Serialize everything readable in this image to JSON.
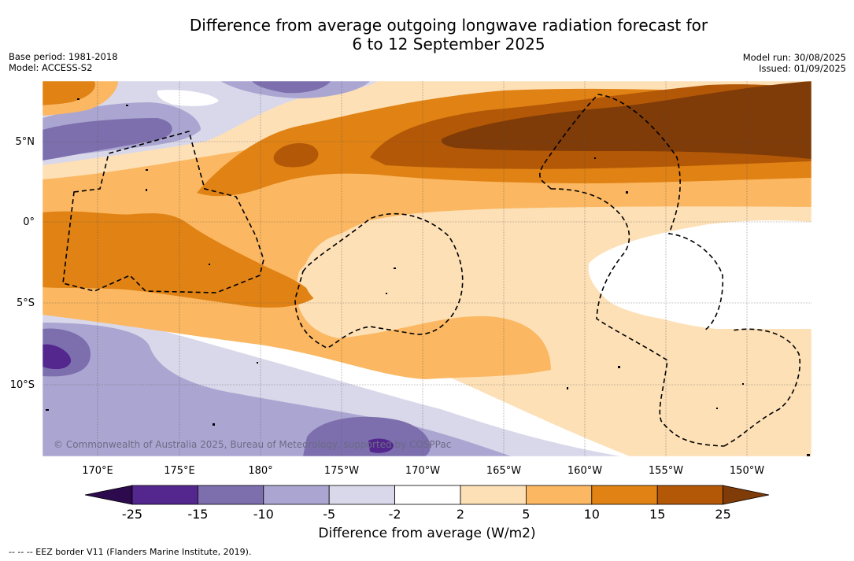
{
  "header": {
    "title_line1": "Difference from average outgoing longwave radiation forecast for",
    "title_line2": "6 to 12 September 2025",
    "base_period": "Base period: 1981-2018",
    "model": "Model: ACCESS-S2",
    "model_run": "Model run: 30/08/2025",
    "issued": "Issued: 01/09/2025"
  },
  "map": {
    "lon_labels": [
      "170°E",
      "175°E",
      "180°",
      "175°W",
      "170°W",
      "165°W",
      "160°W",
      "155°W",
      "150°W"
    ],
    "lat_labels": [
      "5°N",
      "0°",
      "5°S",
      "10°S"
    ],
    "copyright": "© Commonwealth of Australia 2025, Bureau of Meteorology, supported by COSPPac"
  },
  "colorbar": {
    "ticks": [
      "-25",
      "-15",
      "-10",
      "-5",
      "-2",
      "2",
      "5",
      "10",
      "15",
      "25"
    ],
    "colors": {
      "under": "#2d0a4e",
      "n25_15": "#54278f",
      "n15_10": "#7d6fad",
      "n10_5": "#aba6d1",
      "n5_2": "#d9d8ea",
      "n2_2": "#ffffff",
      "p2_5": "#fde0b6",
      "p5_10": "#fbb761",
      "p10_15": "#e08214",
      "p15_25": "#b35806",
      "over": "#7f3b08"
    },
    "label": "Difference from average (W/m2)"
  },
  "footer": {
    "legend": "--  --  -- EEZ border V11 (Flanders Marine Institute, 2019)."
  }
}
